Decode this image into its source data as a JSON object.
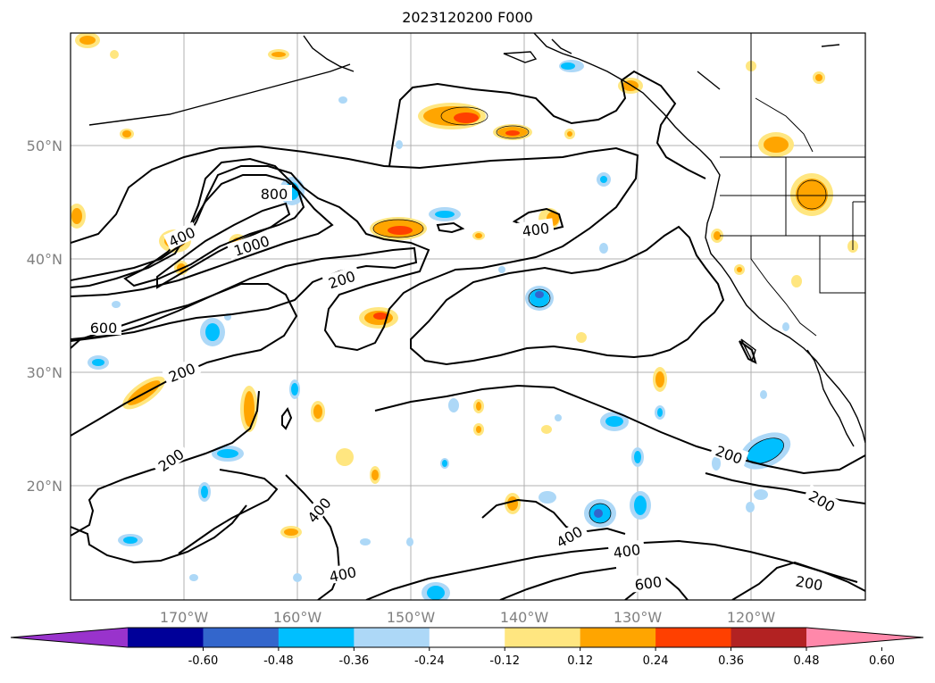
{
  "title": "2023120200 F000",
  "lat_labels": [
    {
      "text": "50°N"
    },
    {
      "text": "40°N"
    },
    {
      "text": "30°N"
    },
    {
      "text": "20°N"
    }
  ],
  "lon_labels": [
    {
      "text": "170°W"
    },
    {
      "text": "160°W"
    },
    {
      "text": "150°W"
    },
    {
      "text": "140°W"
    },
    {
      "text": "130°W"
    },
    {
      "text": "120°W"
    }
  ],
  "colorbar": {
    "ticks": [
      "-0.60",
      "-0.48",
      "-0.36",
      "-0.24",
      "-0.12",
      "0.12",
      "0.24",
      "0.36",
      "0.48",
      "0.60"
    ],
    "colors": [
      "#9933cc",
      "#000099",
      "#3366cc",
      "#00bfff",
      "#add8f7",
      "#ffffff",
      "#ffe680",
      "#ffa500",
      "#ff4000",
      "#b22222",
      "#ff88aa"
    ]
  },
  "contour_labels": [
    {
      "text": "800"
    },
    {
      "text": "1000"
    },
    {
      "text": "400"
    },
    {
      "text": "600"
    },
    {
      "text": "200"
    },
    {
      "text": "200"
    },
    {
      "text": "200"
    },
    {
      "text": "400"
    },
    {
      "text": "400"
    },
    {
      "text": "400"
    },
    {
      "text": "400"
    },
    {
      "text": "600"
    },
    {
      "text": "200"
    },
    {
      "text": "200"
    },
    {
      "text": "200"
    },
    {
      "text": "400"
    }
  ]
}
